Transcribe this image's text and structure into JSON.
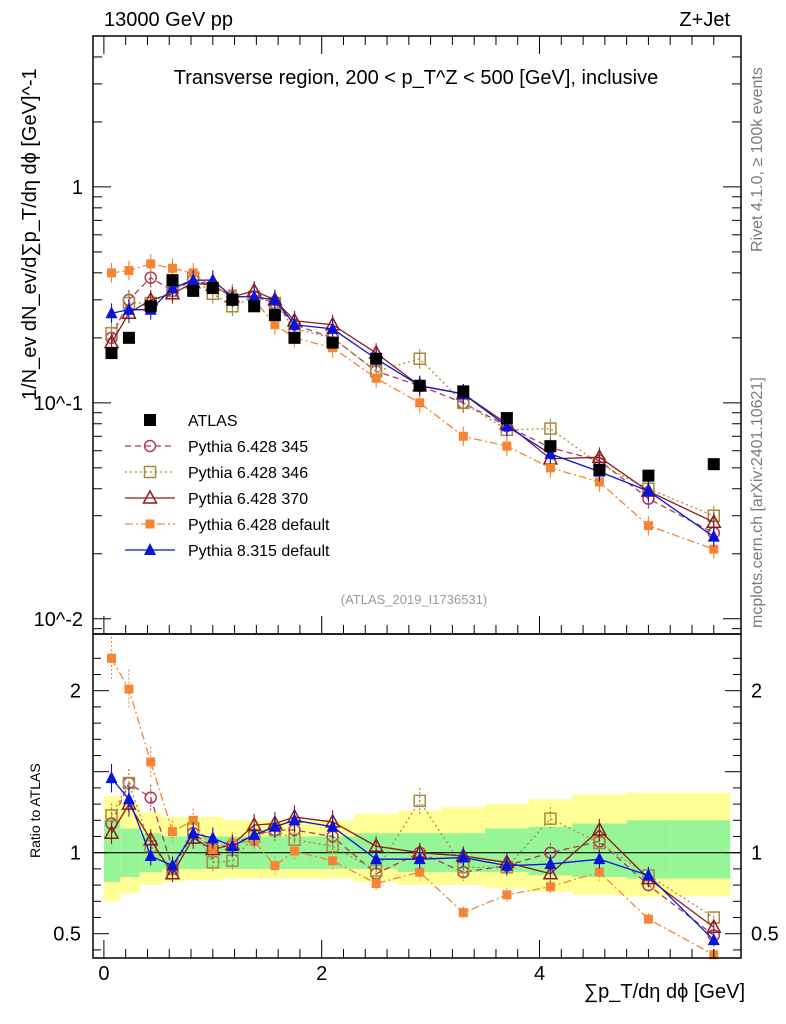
{
  "header": {
    "left": "13000 GeV pp",
    "right": "Z+Jet"
  },
  "plot_title": "Transverse region, 200 < p_T^Z < 500 [GeV], inclusive",
  "side_labels": {
    "rivet": "Rivet 4.1.0, ≥ 100k events",
    "mcplots": "mcplots.cern.ch [arXiv:2401.10621]"
  },
  "analysis_tag": "(ATLAS_2019_I1736531)",
  "ratio_ylabel": "Ratio to ATLAS",
  "colors": {
    "atlas": "#000000",
    "p345": "#a83c5a",
    "p346": "#a88a3c",
    "p370": "#8e1c1c",
    "p6def": "#f58535",
    "p8": "#0a14d8",
    "band_green": "#96f596",
    "band_yellow": "#ffff96"
  },
  "chart_data": [
    {
      "type": "scatter",
      "role": "main",
      "ylabel": "1/N_ev dN_ev/d∑p_T/dη dϕ [GeV]^-1",
      "xlabel": "∑p_T/dη dϕ [GeV]",
      "yscale": "log",
      "xlim": [
        -0.1,
        5.85
      ],
      "ylim": [
        0.0085,
        5.0
      ],
      "y_ticks": [
        {
          "value": 0.01,
          "label": "10^-2"
        },
        {
          "value": 0.1,
          "label": "10^-1"
        },
        {
          "value": 1,
          "label": "1"
        }
      ],
      "x": [
        0.07,
        0.23,
        0.43,
        0.63,
        0.82,
        1.0,
        1.18,
        1.38,
        1.57,
        1.75,
        2.1,
        2.5,
        2.9,
        3.3,
        3.7,
        4.1,
        4.55,
        5.0,
        5.6
      ],
      "series": [
        {
          "name": "ATLAS",
          "key": "atlas",
          "marker": "square",
          "line": "none",
          "y": [
            0.17,
            0.2,
            0.28,
            0.37,
            0.33,
            0.34,
            0.3,
            0.28,
            0.255,
            0.2,
            0.19,
            0.16,
            0.12,
            0.113,
            0.085,
            0.063,
            0.049,
            0.046,
            0.052
          ]
        },
        {
          "name": "Pythia 6.428 345",
          "key": "p345",
          "marker": "open-circle",
          "line": "dash",
          "y": [
            0.2,
            0.3,
            0.38,
            0.33,
            0.37,
            0.35,
            0.31,
            0.31,
            0.29,
            0.23,
            0.2,
            0.14,
            0.12,
            0.1,
            0.078,
            0.062,
            0.054,
            0.036,
            0.025
          ]
        },
        {
          "name": "Pythia 6.428 346",
          "key": "p346",
          "marker": "open-square",
          "line": "dot",
          "y": [
            0.21,
            0.29,
            0.29,
            0.33,
            0.38,
            0.32,
            0.28,
            0.31,
            0.29,
            0.22,
            0.2,
            0.14,
            0.16,
            0.1,
            0.075,
            0.076,
            0.052,
            0.04,
            0.03
          ]
        },
        {
          "name": "Pythia 6.428 370",
          "key": "p370",
          "marker": "open-triangle",
          "line": "solid",
          "y": [
            0.19,
            0.26,
            0.3,
            0.32,
            0.36,
            0.35,
            0.31,
            0.33,
            0.3,
            0.24,
            0.23,
            0.17,
            0.12,
            0.11,
            0.08,
            0.055,
            0.056,
            0.039,
            0.028
          ]
        },
        {
          "name": "Pythia 6.428 default",
          "key": "p6def",
          "marker": "small-square",
          "line": "dashdot",
          "y": [
            0.4,
            0.41,
            0.44,
            0.42,
            0.4,
            0.34,
            0.32,
            0.3,
            0.23,
            0.2,
            0.18,
            0.13,
            0.1,
            0.07,
            0.063,
            0.05,
            0.043,
            0.027,
            0.021
          ]
        },
        {
          "name": "Pythia 8.315 default",
          "key": "p8",
          "marker": "triangle",
          "line": "solid",
          "y": [
            0.26,
            0.27,
            0.27,
            0.34,
            0.37,
            0.37,
            0.31,
            0.31,
            0.3,
            0.23,
            0.22,
            0.16,
            0.12,
            0.11,
            0.078,
            0.058,
            0.048,
            0.039,
            0.024
          ]
        }
      ]
    },
    {
      "type": "scatter",
      "role": "ratio",
      "ylabel": "Ratio to ATLAS",
      "xlim": [
        -0.1,
        5.85
      ],
      "ylim": [
        0.35,
        2.35
      ],
      "x_ticks": [
        {
          "value": 0,
          "label": "0"
        },
        {
          "value": 2,
          "label": "2"
        },
        {
          "value": 4,
          "label": "4"
        }
      ],
      "y_ticks": [
        {
          "value": 0.5,
          "label": "0.5"
        },
        {
          "value": 1,
          "label": "1"
        },
        {
          "value": 2,
          "label": "2"
        }
      ],
      "bands": {
        "edges": [
          0.0,
          0.15,
          0.33,
          0.53,
          0.72,
          0.9,
          1.1,
          1.3,
          1.48,
          1.66,
          1.85,
          2.3,
          2.7,
          3.1,
          3.5,
          3.9,
          4.3,
          4.8,
          5.2,
          5.75
        ],
        "inner": [
          [
            0.82,
            1.2
          ],
          [
            0.85,
            1.15
          ],
          [
            0.88,
            1.12
          ],
          [
            0.9,
            1.1
          ],
          [
            0.9,
            1.1
          ],
          [
            0.9,
            1.1
          ],
          [
            0.9,
            1.1
          ],
          [
            0.9,
            1.1
          ],
          [
            0.9,
            1.1
          ],
          [
            0.9,
            1.1
          ],
          [
            0.9,
            1.1
          ],
          [
            0.9,
            1.12
          ],
          [
            0.88,
            1.12
          ],
          [
            0.88,
            1.12
          ],
          [
            0.88,
            1.15
          ],
          [
            0.86,
            1.16
          ],
          [
            0.85,
            1.18
          ],
          [
            0.84,
            1.2
          ],
          [
            0.84,
            1.2
          ]
        ],
        "outer": [
          [
            0.7,
            1.35
          ],
          [
            0.75,
            1.3
          ],
          [
            0.8,
            1.25
          ],
          [
            0.82,
            1.22
          ],
          [
            0.83,
            1.22
          ],
          [
            0.83,
            1.22
          ],
          [
            0.84,
            1.2
          ],
          [
            0.84,
            1.2
          ],
          [
            0.84,
            1.2
          ],
          [
            0.84,
            1.2
          ],
          [
            0.84,
            1.2
          ],
          [
            0.82,
            1.24
          ],
          [
            0.8,
            1.26
          ],
          [
            0.8,
            1.28
          ],
          [
            0.78,
            1.3
          ],
          [
            0.76,
            1.33
          ],
          [
            0.74,
            1.36
          ],
          [
            0.73,
            1.37
          ],
          [
            0.73,
            1.37
          ]
        ]
      },
      "series": [
        {
          "name": "Pythia 6.428 345",
          "key": "p345",
          "marker": "open-circle",
          "line": "dash",
          "y": [
            1.18,
            1.43,
            1.34,
            0.9,
            1.12,
            1.03,
            1.05,
            1.11,
            1.14,
            1.14,
            1.1,
            0.87,
            1.0,
            0.88,
            0.92,
            1.0,
            1.07,
            0.8,
            0.49
          ]
        },
        {
          "name": "Pythia 6.428 346",
          "key": "p346",
          "marker": "open-square",
          "line": "dot",
          "y": [
            1.23,
            1.43,
            1.04,
            0.9,
            1.15,
            0.94,
            0.95,
            1.1,
            1.14,
            1.08,
            1.04,
            0.89,
            1.32,
            0.91,
            0.91,
            1.21,
            1.06,
            0.86,
            0.6
          ]
        },
        {
          "name": "Pythia 6.428 370",
          "key": "p370",
          "marker": "open-triangle",
          "line": "solid",
          "y": [
            1.12,
            1.3,
            1.08,
            0.87,
            1.09,
            1.02,
            1.05,
            1.17,
            1.18,
            1.22,
            1.19,
            1.04,
            1.0,
            0.98,
            0.94,
            0.87,
            1.14,
            0.84,
            0.54
          ]
        },
        {
          "name": "Pythia 6.428 default",
          "key": "p6def",
          "marker": "small-square",
          "line": "dashdot",
          "y": [
            2.2,
            2.01,
            1.56,
            1.13,
            1.2,
            1.02,
            1.06,
            1.07,
            0.92,
            1.01,
            0.95,
            0.81,
            0.88,
            0.63,
            0.74,
            0.79,
            0.88,
            0.59,
            0.37
          ]
        },
        {
          "name": "Pythia 8.315 default",
          "key": "p8",
          "marker": "triangle",
          "line": "solid",
          "y": [
            1.46,
            1.33,
            0.98,
            0.92,
            1.12,
            1.09,
            1.04,
            1.11,
            1.16,
            1.2,
            1.16,
            0.96,
            0.96,
            0.97,
            0.92,
            0.93,
            0.96,
            0.86,
            0.46
          ]
        }
      ]
    }
  ]
}
